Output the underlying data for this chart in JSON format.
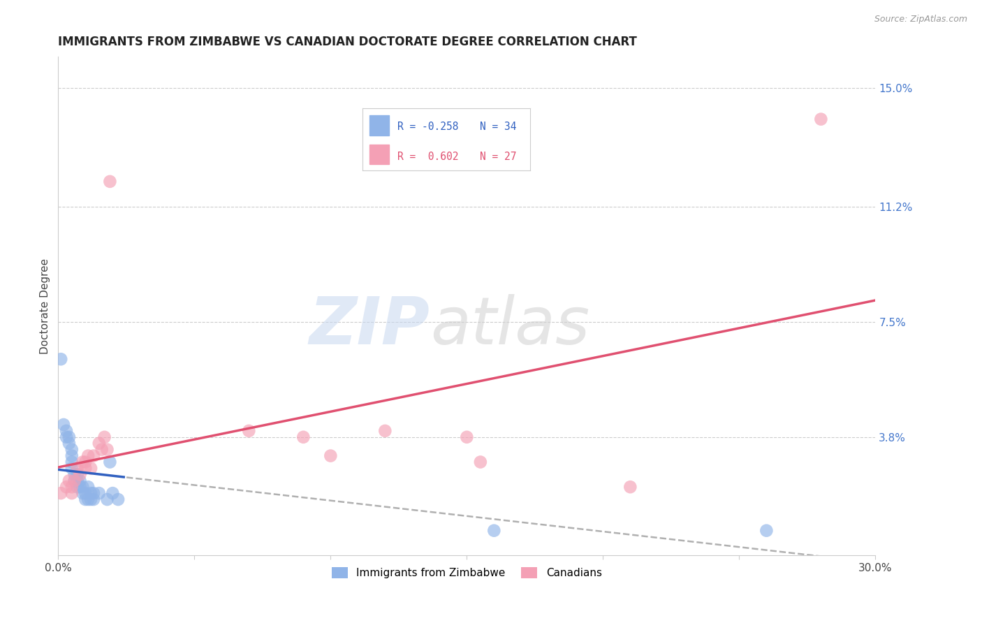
{
  "title": "IMMIGRANTS FROM ZIMBABWE VS CANADIAN DOCTORATE DEGREE CORRELATION CHART",
  "source": "Source: ZipAtlas.com",
  "ylabel": "Doctorate Degree",
  "x_min": 0.0,
  "x_max": 0.3,
  "y_min": 0.0,
  "y_max": 0.16,
  "x_ticks": [
    0.0,
    0.05,
    0.1,
    0.15,
    0.2,
    0.25,
    0.3
  ],
  "x_tick_labels": [
    "0.0%",
    "",
    "",
    "",
    "",
    "",
    "30.0%"
  ],
  "y_ticks_right": [
    0.15,
    0.112,
    0.075,
    0.038,
    0.0
  ],
  "y_tick_labels_right": [
    "15.0%",
    "11.2%",
    "7.5%",
    "3.8%",
    ""
  ],
  "grid_color": "#cccccc",
  "background_color": "#ffffff",
  "legend_R1": "R = -0.258",
  "legend_N1": "N = 34",
  "legend_R2": "R =  0.602",
  "legend_N2": "N = 27",
  "color_blue": "#90b4e8",
  "color_pink": "#f4a0b5",
  "color_line_blue": "#3060c0",
  "color_line_pink": "#e05070",
  "color_line_dashed": "#b0b0b0",
  "legend_label1": "Immigrants from Zimbabwe",
  "legend_label2": "Canadians",
  "blue_points": [
    [
      0.001,
      0.063
    ],
    [
      0.002,
      0.042
    ],
    [
      0.003,
      0.04
    ],
    [
      0.003,
      0.038
    ],
    [
      0.004,
      0.036
    ],
    [
      0.004,
      0.038
    ],
    [
      0.005,
      0.034
    ],
    [
      0.005,
      0.032
    ],
    [
      0.005,
      0.03
    ],
    [
      0.005,
      0.028
    ],
    [
      0.006,
      0.026
    ],
    [
      0.006,
      0.024
    ],
    [
      0.007,
      0.026
    ],
    [
      0.007,
      0.024
    ],
    [
      0.007,
      0.022
    ],
    [
      0.008,
      0.024
    ],
    [
      0.008,
      0.022
    ],
    [
      0.009,
      0.022
    ],
    [
      0.009,
      0.02
    ],
    [
      0.01,
      0.02
    ],
    [
      0.01,
      0.018
    ],
    [
      0.011,
      0.022
    ],
    [
      0.011,
      0.018
    ],
    [
      0.012,
      0.02
    ],
    [
      0.012,
      0.018
    ],
    [
      0.013,
      0.02
    ],
    [
      0.013,
      0.018
    ],
    [
      0.015,
      0.02
    ],
    [
      0.018,
      0.018
    ],
    [
      0.019,
      0.03
    ],
    [
      0.02,
      0.02
    ],
    [
      0.022,
      0.018
    ],
    [
      0.16,
      0.008
    ],
    [
      0.26,
      0.008
    ]
  ],
  "pink_points": [
    [
      0.001,
      0.02
    ],
    [
      0.003,
      0.022
    ],
    [
      0.004,
      0.024
    ],
    [
      0.005,
      0.02
    ],
    [
      0.005,
      0.022
    ],
    [
      0.006,
      0.024
    ],
    [
      0.007,
      0.028
    ],
    [
      0.008,
      0.026
    ],
    [
      0.009,
      0.03
    ],
    [
      0.01,
      0.028
    ],
    [
      0.01,
      0.03
    ],
    [
      0.011,
      0.032
    ],
    [
      0.012,
      0.028
    ],
    [
      0.013,
      0.032
    ],
    [
      0.015,
      0.036
    ],
    [
      0.016,
      0.034
    ],
    [
      0.017,
      0.038
    ],
    [
      0.018,
      0.034
    ],
    [
      0.019,
      0.12
    ],
    [
      0.07,
      0.04
    ],
    [
      0.09,
      0.038
    ],
    [
      0.1,
      0.032
    ],
    [
      0.12,
      0.04
    ],
    [
      0.15,
      0.038
    ],
    [
      0.155,
      0.03
    ],
    [
      0.21,
      0.022
    ],
    [
      0.28,
      0.14
    ]
  ]
}
